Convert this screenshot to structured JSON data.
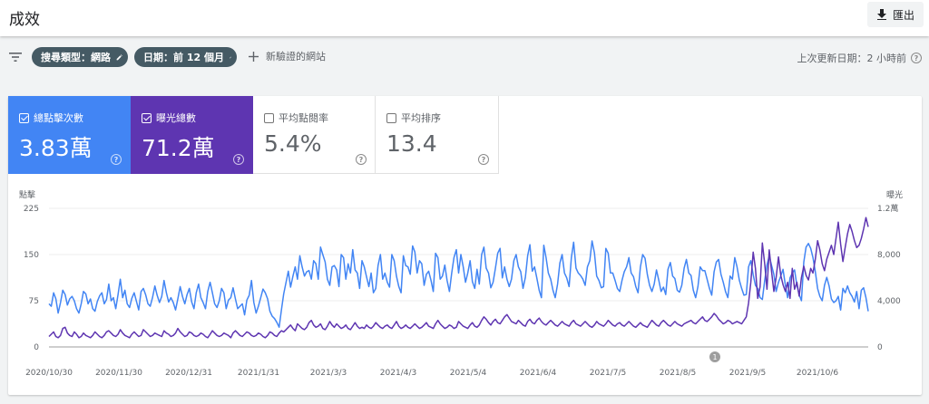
{
  "header": {
    "title": "成效",
    "export_label": "匯出"
  },
  "filters": {
    "chips": [
      "搜尋類型：網路",
      "日期：前 12 個月"
    ],
    "add_site_label": "新驗證的網站",
    "last_updated": "上次更新日期：2 小時前"
  },
  "metrics": [
    {
      "label": "總點擊次數",
      "value": "3.83萬",
      "checked": true
    },
    {
      "label": "曝光總數",
      "value": "71.2萬",
      "checked": true
    },
    {
      "label": "平均點閱率",
      "value": "5.4%",
      "checked": false
    },
    {
      "label": "平均排序",
      "value": "13.4",
      "checked": false
    }
  ],
  "colors": {
    "clicks": "#4285f4",
    "impressions": "#5e35b1"
  },
  "chart_data": {
    "type": "line",
    "left_axis_label": "點擊",
    "right_axis_label": "曝光",
    "left_ticks": [
      "225",
      "150",
      "75",
      "0"
    ],
    "right_ticks": [
      "1.2萬",
      "8,000",
      "4,000",
      "0"
    ],
    "left_ylim": [
      0,
      225
    ],
    "right_ylim": [
      0,
      12000
    ],
    "x_ticks": [
      "2020/10/30",
      "2020/11/30",
      "2020/12/31",
      "2021/1/31",
      "2021/3/3",
      "2021/4/3",
      "2021/5/4",
      "2021/6/4",
      "2021/7/5",
      "2021/8/5",
      "2021/9/5",
      "2021/10/6"
    ],
    "annotation": "1",
    "series": [
      {
        "name": "點擊",
        "axis": "left",
        "values": [
          70,
          66,
          88,
          78,
          55,
          72,
          92,
          85,
          68,
          78,
          82,
          75,
          62,
          55,
          70,
          90,
          86,
          70,
          78,
          62,
          58,
          74,
          83,
          88,
          70,
          77,
          102,
          75,
          80,
          62,
          85,
          110,
          80,
          92,
          70,
          64,
          79,
          88,
          74,
          60,
          90,
          95,
          85,
          70,
          66,
          80,
          99,
          84,
          72,
          82,
          108,
          88,
          73,
          80,
          72,
          60,
          78,
          98,
          82,
          70,
          85,
          95,
          73,
          62,
          88,
          102,
          80,
          72,
          62,
          90,
          105,
          88,
          70,
          64,
          75,
          95,
          88,
          62,
          76,
          80,
          96,
          78,
          62,
          66,
          70,
          52,
          76,
          84,
          108,
          72,
          55,
          66,
          80,
          94,
          88,
          78,
          58,
          50,
          46,
          40,
          32,
          60,
          86,
          105,
          123,
          97,
          115,
          130,
          110,
          148,
          130,
          115,
          122,
          124,
          110,
          140,
          135,
          110,
          162,
          150,
          138,
          110,
          100,
          130,
          132,
          125,
          98,
          150,
          145,
          110,
          135,
          120,
          158,
          125,
          120,
          95,
          140,
          130,
          114,
          98,
          120,
          88,
          95,
          132,
          150,
          110,
          120,
          105,
          97,
          150,
          140,
          115,
          98,
          88,
          148,
          132,
          130,
          118,
          164,
          154,
          120,
          140,
          135,
          100,
          118,
          123,
          108,
          90,
          152,
          145,
          110,
          115,
          133,
          108,
          90,
          120,
          145,
          158,
          120,
          150,
          130,
          105,
          120,
          140,
          106,
          95,
          126,
          102,
          150,
          162,
          128,
          120,
          96,
          105,
          128,
          152,
          160,
          112,
          130,
          110,
          98,
          110,
          140,
          150,
          130,
          122,
          95,
          113,
          148,
          166,
          123,
          130,
          112,
          92,
          80,
          165,
          145,
          120,
          110,
          92,
          80,
          102,
          136,
          150,
          120,
          112,
          98,
          145,
          170,
          128,
          120,
          116,
          110,
          100,
          130,
          140,
          172,
          153,
          115,
          108,
          96,
          98,
          160,
          152,
          120,
          120,
          108,
          95,
          90,
          108,
          122,
          130,
          145,
          120,
          114,
          98,
          88,
          130,
          150,
          144,
          118,
          100,
          90,
          102,
          125,
          108,
          90,
          97,
          85,
          126,
          137,
          115,
          111,
          92,
          89,
          100,
          128,
          142,
          120,
          116,
          92,
          80,
          98,
          130,
          124,
          124,
          110,
          95,
          84,
          122,
          138,
          142,
          118,
          105,
          90,
          80,
          115,
          110,
          145,
          130,
          108,
          95,
          84,
          85,
          130,
          140,
          117,
          100,
          95,
          80,
          77,
          108,
          133,
          148,
          132,
          118,
          90,
          105,
          115,
          126,
          100,
          80,
          112,
          120,
          125,
          100,
          85,
          75,
          138,
          162,
          168,
          160,
          145,
          122,
          95,
          82,
          75,
          100,
          113,
          99,
          78,
          72,
          75,
          82,
          60,
          95,
          88,
          99,
          88,
          82,
          73,
          90,
          62,
          92,
          96,
          80,
          58
        ]
      },
      {
        "name": "曝光",
        "axis": "right",
        "values": [
          900,
          1100,
          1300,
          900,
          800,
          1000,
          1600,
          1700,
          1200,
          1000,
          900,
          1300,
          1100,
          800,
          900,
          1200,
          1000,
          900,
          800,
          1000,
          1300,
          1100,
          900,
          800,
          1000,
          1300,
          1400,
          1200,
          1000,
          900,
          1100,
          1500,
          1200,
          1000,
          900,
          800,
          1100,
          1300,
          1100,
          900,
          1000,
          1500,
          1300,
          1100,
          900,
          1000,
          1200,
          1100,
          1000,
          900,
          1400,
          1200,
          1100,
          900,
          1000,
          1200,
          1600,
          1300,
          1100,
          900,
          1000,
          1300,
          1200,
          1000,
          900,
          1000,
          1200,
          1100,
          900,
          800,
          1100,
          1400,
          1200,
          1000,
          900,
          1000,
          1200,
          1100,
          1000,
          800,
          1200,
          1400,
          1200,
          1000,
          900,
          1100,
          1300,
          1200,
          1000,
          900,
          1000,
          1200,
          1100,
          900,
          800,
          1000,
          1300,
          1200,
          1000,
          900,
          1200,
          1400,
          1300,
          1500,
          1700,
          1900,
          1600,
          1400,
          2000,
          1800,
          1600,
          1500,
          1700,
          2100,
          2300,
          1900,
          1700,
          1800,
          2000,
          1600,
          1500,
          1800,
          2200,
          1900,
          1700,
          2000,
          1800,
          1600,
          1700,
          1900,
          1600,
          1500,
          1800,
          2100,
          1800,
          1600,
          1700,
          1600,
          1900,
          1700,
          1600,
          1800,
          2100,
          1900,
          1700,
          1600,
          1800,
          1900,
          1700,
          1600,
          1900,
          2200,
          1800,
          1600,
          1700,
          1900,
          1700,
          1600,
          1800,
          2000,
          1800,
          1600,
          1700,
          1900,
          2100,
          1800,
          1700,
          1600,
          2000,
          2300,
          2000,
          1800,
          1600,
          1700,
          1900,
          1800,
          1600,
          1700,
          2200,
          2000,
          1800,
          1700,
          1600,
          1900,
          2100,
          1800,
          1700,
          1900,
          2300,
          2600,
          2400,
          2100,
          1900,
          2200,
          2400,
          2100,
          2000,
          2300,
          2600,
          2800,
          2500,
          2200,
          2100,
          2000,
          2300,
          2100,
          1900,
          1800,
          2200,
          2400,
          2100,
          2000,
          2300,
          2500,
          2200,
          2000,
          1900,
          2100,
          2300,
          2100,
          1900,
          1800,
          2000,
          2200,
          2000,
          1900,
          1800,
          2100,
          2300,
          2000,
          1900,
          1800,
          2000,
          2200,
          2000,
          1800,
          1700,
          1900,
          2200,
          2000,
          1900,
          1800,
          2000,
          2300,
          2100,
          1900,
          1800,
          2000,
          2100,
          1900,
          1800,
          2000,
          2200,
          2000,
          1800,
          1700,
          1900,
          2100,
          1900,
          1800,
          1700,
          2000,
          2300,
          2100,
          1900,
          1800,
          2100,
          2300,
          2100,
          1900,
          1800,
          2000,
          2200,
          2000,
          1900,
          1800,
          2000,
          2100,
          2200,
          2300,
          2100,
          2000,
          2200,
          2400,
          2600,
          2300,
          2200,
          2400,
          2600,
          2900,
          2700,
          2400,
          2200,
          2000,
          2100,
          2300,
          2200,
          2000,
          2100,
          2200,
          2100,
          2000,
          2300,
          2600,
          3800,
          5600,
          8200,
          6800,
          4200,
          5200,
          9000,
          7200,
          5000,
          8400,
          6500,
          4800,
          6000,
          7800,
          6200,
          5400,
          4800,
          5600,
          4200,
          6800,
          5000,
          5600,
          4400,
          6000,
          7000,
          6200,
          5800,
          6800,
          6400,
          7600,
          9200,
          8400,
          7200,
          6600,
          7600,
          8200,
          8800,
          8000,
          9400,
          10800,
          8900,
          7400,
          8600,
          9800,
          10600,
          10000,
          9200,
          8600,
          8800,
          9400,
          10200,
          11200,
          10400
        ]
      }
    ]
  }
}
